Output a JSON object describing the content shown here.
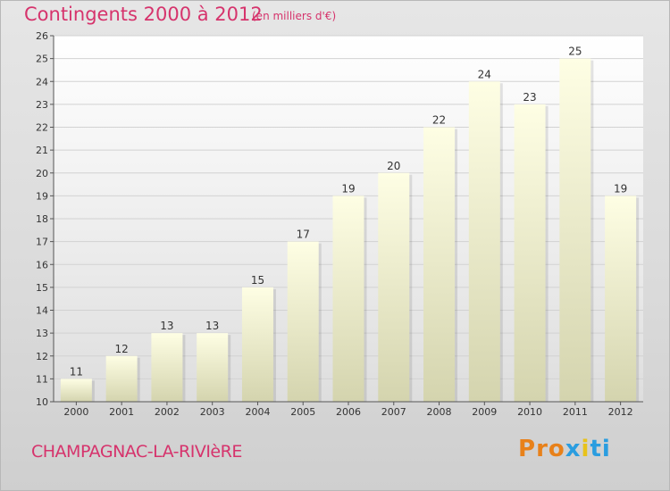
{
  "header": {
    "title": "Contingents 2000 à 2012",
    "subtitle": "(en milliers d'€)"
  },
  "footer": {
    "commune": "CHAMPAGNAC-LA-RIVIèRE",
    "logo": "Proxiti",
    "logo_colors": [
      "#e8811a",
      "#e8811a",
      "#e8811a",
      "#2a9de0",
      "#e8c21a",
      "#2a9de0",
      "#2a9de0"
    ]
  },
  "chart_data": {
    "type": "bar",
    "title": "Contingents 2000 à 2012",
    "subtitle": "(en milliers d'€)",
    "xlabel": "",
    "ylabel": "",
    "categories": [
      "2000",
      "2001",
      "2002",
      "2003",
      "2004",
      "2005",
      "2006",
      "2007",
      "2008",
      "2009",
      "2010",
      "2011",
      "2012"
    ],
    "values": [
      11,
      12,
      13,
      13,
      15,
      17,
      19,
      20,
      22,
      24,
      23,
      25,
      19
    ],
    "ylim": [
      10,
      26
    ],
    "yticks": [
      10,
      11,
      12,
      13,
      14,
      15,
      16,
      17,
      18,
      19,
      20,
      21,
      22,
      23,
      24,
      25,
      26
    ],
    "grid": true,
    "legend": "none",
    "colors": {
      "bar_top": "#fefee6",
      "bar_bottom": "#d3d3ad",
      "grid": "#cfcfcf",
      "plot_bg_top": "#ffffff",
      "plot_bg_bottom": "#dcdcdc",
      "title": "#d6336c"
    }
  }
}
